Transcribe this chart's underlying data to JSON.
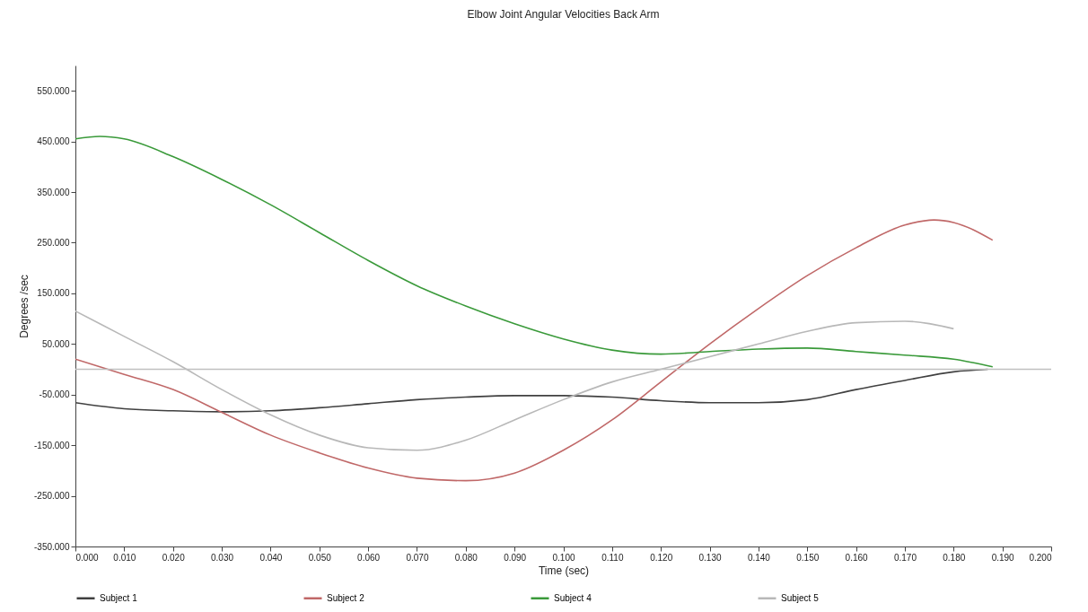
{
  "chart_data": {
    "type": "line",
    "title": "Elbow Joint Angular Velocities Back Arm",
    "xlabel": "Time (sec)",
    "ylabel": "Degrees /sec",
    "xlim": [
      0,
      0.2
    ],
    "xticks": [
      {
        "value": 0,
        "label": "0.000"
      },
      {
        "value": 0.01,
        "label": "0.010"
      },
      {
        "value": 0.02,
        "label": "0.020"
      },
      {
        "value": 0.03,
        "label": "0.030"
      },
      {
        "value": 0.04,
        "label": "0.040"
      },
      {
        "value": 0.05,
        "label": "0.050"
      },
      {
        "value": 0.06,
        "label": "0.060"
      },
      {
        "value": 0.07,
        "label": "0.070"
      },
      {
        "value": 0.08,
        "label": "0.080"
      },
      {
        "value": 0.09,
        "label": "0.090"
      },
      {
        "value": 0.1,
        "label": "0.100"
      },
      {
        "value": 0.11,
        "label": "0.110"
      },
      {
        "value": 0.12,
        "label": "0.120"
      },
      {
        "value": 0.13,
        "label": "0.130"
      },
      {
        "value": 0.14,
        "label": "0.140"
      },
      {
        "value": 0.15,
        "label": "0.150"
      },
      {
        "value": 0.16,
        "label": "0.160"
      },
      {
        "value": 0.17,
        "label": "0.170"
      },
      {
        "value": 0.18,
        "label": "0.180"
      },
      {
        "value": 0.19,
        "label": "0.190"
      },
      {
        "value": 0.2,
        "label": "0.200"
      }
    ],
    "ylim": [
      -350,
      600
    ],
    "yticks": [
      {
        "value": -350,
        "label": "-350.000"
      },
      {
        "value": -250,
        "label": "-250.000"
      },
      {
        "value": -150,
        "label": "-150.000"
      },
      {
        "value": -50,
        "label": "-50.000"
      },
      {
        "value": 50,
        "label": "50.000"
      },
      {
        "value": 150,
        "label": "150.000"
      },
      {
        "value": 250,
        "label": "250.000"
      },
      {
        "value": 350,
        "label": "350.000"
      },
      {
        "value": 450,
        "label": "450.000"
      },
      {
        "value": 550,
        "label": "550.000"
      }
    ],
    "grid": false,
    "legend": "bottom",
    "line_style": "solid",
    "ref_lines": [
      {
        "axis": "y",
        "value": 0,
        "color": "#c0c0c0"
      }
    ],
    "series": [
      {
        "name": "Subject 1",
        "color": "#404040",
        "x": [
          0,
          0.01,
          0.02,
          0.03,
          0.04,
          0.05,
          0.06,
          0.07,
          0.08,
          0.09,
          0.1,
          0.11,
          0.12,
          0.13,
          0.14,
          0.15,
          0.16,
          0.17,
          0.18,
          0.187
        ],
        "values": [
          -66,
          -78,
          -82,
          -84,
          -82,
          -76,
          -68,
          -60,
          -55,
          -52,
          -52,
          -55,
          -62,
          -66,
          -66,
          -60,
          -40,
          -22,
          -5,
          0
        ]
      },
      {
        "name": "Subject 2",
        "color": "#c06868",
        "x": [
          0,
          0.01,
          0.02,
          0.03,
          0.04,
          0.05,
          0.06,
          0.07,
          0.08,
          0.09,
          0.1,
          0.11,
          0.12,
          0.13,
          0.14,
          0.15,
          0.16,
          0.17,
          0.176,
          0.18,
          0.188
        ],
        "values": [
          20,
          -10,
          -40,
          -85,
          -130,
          -165,
          -195,
          -215,
          -220,
          -205,
          -160,
          -100,
          -25,
          50,
          120,
          185,
          240,
          285,
          295,
          290,
          255
        ]
      },
      {
        "name": "Subject 4",
        "color": "#3a9a3a",
        "x": [
          0,
          0.005,
          0.01,
          0.02,
          0.03,
          0.04,
          0.05,
          0.06,
          0.07,
          0.08,
          0.09,
          0.1,
          0.11,
          0.12,
          0.13,
          0.14,
          0.15,
          0.16,
          0.17,
          0.18,
          0.188
        ],
        "values": [
          455,
          460,
          455,
          420,
          375,
          325,
          270,
          215,
          165,
          125,
          90,
          60,
          38,
          30,
          35,
          40,
          42,
          35,
          28,
          20,
          5
        ]
      },
      {
        "name": "Subject 5",
        "color": "#b8b8b8",
        "x": [
          0,
          0.01,
          0.02,
          0.03,
          0.04,
          0.05,
          0.06,
          0.07,
          0.08,
          0.09,
          0.1,
          0.11,
          0.12,
          0.13,
          0.14,
          0.15,
          0.16,
          0.17,
          0.18
        ],
        "values": [
          115,
          65,
          15,
          -40,
          -90,
          -130,
          -155,
          -160,
          -140,
          -100,
          -60,
          -25,
          0,
          25,
          50,
          75,
          92,
          95,
          80
        ]
      }
    ]
  }
}
